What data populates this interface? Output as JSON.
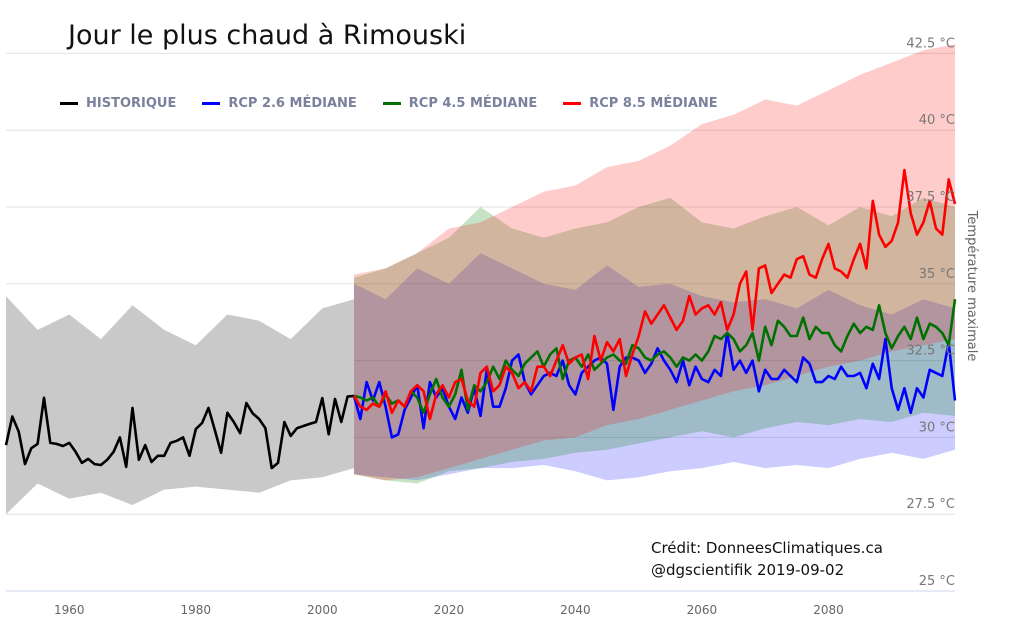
{
  "chart_data": {
    "type": "line",
    "title": "Jour le plus chaud à Rimouski",
    "xlabel": "",
    "ylabel": "Température maximale",
    "xlim": [
      1950,
      2100
    ],
    "ylim": [
      25,
      43.5
    ],
    "x_ticks": [
      1960,
      1980,
      2000,
      2020,
      2040,
      2060,
      2080
    ],
    "y_ticks": [
      {
        "value": 25,
        "label": "25 °C"
      },
      {
        "value": 27.5,
        "label": "27.5 °C"
      },
      {
        "value": 30,
        "label": "30 °C"
      },
      {
        "value": 32.5,
        "label": "32.5 °C"
      },
      {
        "value": 35,
        "label": "35 °C"
      },
      {
        "value": 37.5,
        "label": "37.5 °C"
      },
      {
        "value": 40,
        "label": "40 °C"
      },
      {
        "value": 42.5,
        "label": "42.5 °C"
      }
    ],
    "grid": true,
    "legend_position": "top-left",
    "legend": [
      {
        "label": "HISTORIQUE",
        "color": "#000000"
      },
      {
        "label": "RCP 2.6 MÉDIANE",
        "color": "#0000ff"
      },
      {
        "label": "RCP 4.5 MÉDIANE",
        "color": "#007000"
      },
      {
        "label": "RCP 8.5 MÉDIANE",
        "color": "#ff0000"
      }
    ],
    "historical": {
      "start_year": 1950,
      "color": "#000000",
      "band_color": "#c9c9c9",
      "median": [
        29.75,
        30.68,
        30.19,
        29.13,
        29.65,
        29.79,
        31.29,
        29.82,
        29.79,
        29.72,
        29.82,
        29.53,
        29.17,
        29.3,
        29.13,
        29.1,
        29.27,
        29.53,
        30.0,
        29.04,
        30.96,
        29.27,
        29.75,
        29.2,
        29.4,
        29.4,
        29.82,
        29.89,
        30.0,
        29.4,
        30.27,
        30.47,
        30.96,
        30.24,
        29.5,
        30.8,
        30.5,
        30.14,
        31.12,
        30.78,
        30.6,
        30.3,
        29.0,
        29.17,
        30.5,
        30.05,
        30.3,
        30.37,
        30.44,
        30.5,
        31.28,
        30.1,
        31.25,
        30.5,
        31.33,
        31.35
      ],
      "band_step": 5,
      "band_low": [
        27.5,
        28.5,
        28.0,
        28.2,
        27.8,
        28.3,
        28.4,
        28.3,
        28.2,
        28.6,
        28.7,
        29.0
      ],
      "band_high": [
        34.6,
        33.5,
        34.0,
        33.2,
        34.3,
        33.5,
        33.0,
        34.0,
        33.8,
        33.2,
        34.2,
        34.5
      ]
    },
    "series": [
      {
        "name": "RCP 2.6 MÉDIANE",
        "start_year": 2006,
        "color": "#0000ff",
        "band_color": "rgba(0,0,255,0.2)",
        "band_start_year": 2005,
        "band_step": 5,
        "median": [
          30.6,
          31.8,
          31.2,
          31.8,
          31.0,
          30.0,
          30.1,
          30.9,
          31.3,
          31.7,
          30.3,
          31.8,
          31.3,
          31.6,
          31.0,
          30.6,
          31.3,
          30.8,
          31.6,
          30.7,
          32.2,
          31.0,
          31.0,
          31.6,
          32.5,
          32.7,
          31.8,
          31.4,
          31.7,
          32.0,
          32.1,
          32.0,
          32.5,
          31.7,
          31.4,
          32.1,
          32.3,
          32.5,
          32.6,
          32.4,
          30.9,
          32.3,
          32.6,
          32.6,
          32.5,
          32.1,
          32.4,
          32.9,
          32.5,
          32.2,
          31.8,
          32.5,
          31.7,
          32.3,
          31.9,
          31.8,
          32.2,
          32.0,
          33.4,
          32.2,
          32.5,
          32.1,
          32.5,
          31.5,
          32.2,
          31.9,
          31.9,
          32.2,
          32.0,
          31.8,
          32.6,
          32.4,
          31.8,
          31.8,
          32.0,
          31.9,
          32.3,
          32.0,
          32.0,
          32.1,
          31.6,
          32.4,
          31.9,
          33.2,
          31.6,
          30.9,
          31.6,
          30.8,
          31.6,
          31.3,
          32.2,
          32.1,
          32.0,
          33.1,
          31.2
        ],
        "band_low": [
          28.8,
          28.7,
          28.6,
          28.8,
          29.0,
          29.0,
          29.1,
          28.9,
          28.6,
          28.7,
          28.9,
          29.0,
          29.2,
          29.0,
          29.1,
          29.0,
          29.3,
          29.5,
          29.3,
          29.6
        ],
        "band_high": [
          35.0,
          34.5,
          35.5,
          35.0,
          36.0,
          35.5,
          35.0,
          34.8,
          35.6,
          34.9,
          35.0,
          34.6,
          34.4,
          34.5,
          34.2,
          34.8,
          34.3,
          34.0,
          34.5,
          34.2
        ]
      },
      {
        "name": "RCP 4.5 MÉDIANE",
        "start_year": 2006,
        "color": "#007000",
        "band_color": "rgba(0,128,0,0.22)",
        "band_start_year": 2005,
        "band_step": 5,
        "median": [
          31.3,
          31.2,
          31.3,
          31.0,
          31.4,
          31.1,
          31.2,
          31.0,
          31.5,
          31.3,
          30.8,
          31.4,
          31.9,
          31.3,
          31.0,
          31.4,
          32.2,
          30.9,
          31.7,
          31.5,
          31.8,
          32.3,
          31.9,
          32.5,
          32.2,
          32.0,
          32.4,
          32.6,
          32.8,
          32.3,
          32.7,
          32.9,
          31.9,
          32.5,
          32.6,
          32.3,
          32.7,
          32.2,
          32.4,
          32.6,
          32.7,
          32.5,
          32.4,
          33.0,
          32.9,
          32.6,
          32.5,
          32.7,
          32.8,
          32.6,
          32.3,
          32.6,
          32.5,
          32.7,
          32.5,
          32.8,
          33.3,
          33.2,
          33.4,
          33.2,
          32.8,
          33.0,
          33.4,
          32.5,
          33.6,
          33.0,
          33.8,
          33.6,
          33.3,
          33.3,
          33.9,
          33.2,
          33.6,
          33.4,
          33.4,
          33.0,
          32.8,
          33.3,
          33.7,
          33.4,
          33.6,
          33.5,
          34.3,
          33.4,
          32.9,
          33.3,
          33.6,
          33.2,
          33.9,
          33.2,
          33.7,
          33.6,
          33.4,
          33.0,
          34.5
        ],
        "band_low": [
          28.8,
          28.6,
          28.5,
          28.9,
          29.0,
          29.2,
          29.3,
          29.5,
          29.6,
          29.8,
          30.0,
          30.2,
          30.0,
          30.3,
          30.5,
          30.4,
          30.6,
          30.5,
          30.8,
          30.7
        ],
        "band_high": [
          35.2,
          35.5,
          36.0,
          36.5,
          37.5,
          36.8,
          36.5,
          36.8,
          37.0,
          37.5,
          37.8,
          37.0,
          36.8,
          37.2,
          37.5,
          36.9,
          37.5,
          37.2,
          37.8,
          37.5
        ]
      },
      {
        "name": "RCP 8.5 MÉDIANE",
        "start_year": 2006,
        "color": "#ff0000",
        "band_color": "rgba(255,0,0,0.2)",
        "band_start_year": 2005,
        "band_step": 5,
        "median": [
          31.0,
          30.9,
          31.1,
          31.0,
          31.5,
          30.8,
          31.2,
          31.0,
          31.5,
          31.7,
          31.5,
          30.6,
          31.4,
          31.7,
          31.3,
          31.8,
          31.9,
          31.2,
          31.0,
          32.1,
          32.3,
          31.5,
          31.7,
          32.3,
          32.1,
          31.6,
          31.8,
          31.5,
          32.3,
          32.3,
          32.0,
          32.5,
          33.0,
          32.4,
          32.6,
          32.7,
          31.9,
          33.3,
          32.5,
          33.1,
          32.8,
          33.2,
          32.0,
          32.7,
          33.3,
          34.1,
          33.7,
          34.0,
          34.3,
          33.9,
          33.5,
          33.8,
          34.6,
          34.0,
          34.2,
          34.3,
          34.0,
          34.4,
          33.5,
          34.0,
          35.0,
          35.4,
          33.5,
          35.5,
          35.6,
          34.7,
          35.0,
          35.3,
          35.2,
          35.8,
          35.9,
          35.3,
          35.2,
          35.8,
          36.3,
          35.5,
          35.4,
          35.2,
          35.8,
          36.3,
          35.5,
          37.7,
          36.6,
          36.2,
          36.4,
          37.0,
          38.7,
          37.3,
          36.6,
          37.0,
          37.7,
          36.8,
          36.6,
          38.4,
          37.6
        ],
        "band_low": [
          28.8,
          28.6,
          28.7,
          29.0,
          29.3,
          29.6,
          29.9,
          30.0,
          30.4,
          30.6,
          30.9,
          31.2,
          31.5,
          31.7,
          32.0,
          32.3,
          32.5,
          32.8,
          33.0,
          33.2
        ],
        "band_high": [
          35.3,
          35.5,
          36.0,
          36.8,
          37.0,
          37.5,
          38.0,
          38.2,
          38.8,
          39.0,
          39.5,
          40.2,
          40.5,
          41.0,
          40.8,
          41.3,
          41.8,
          42.2,
          42.6,
          42.8
        ]
      }
    ],
    "annotations": [
      "Crédit: DonneesClimatiques.ca",
      "@dgscientifik 2019-09-02"
    ]
  }
}
